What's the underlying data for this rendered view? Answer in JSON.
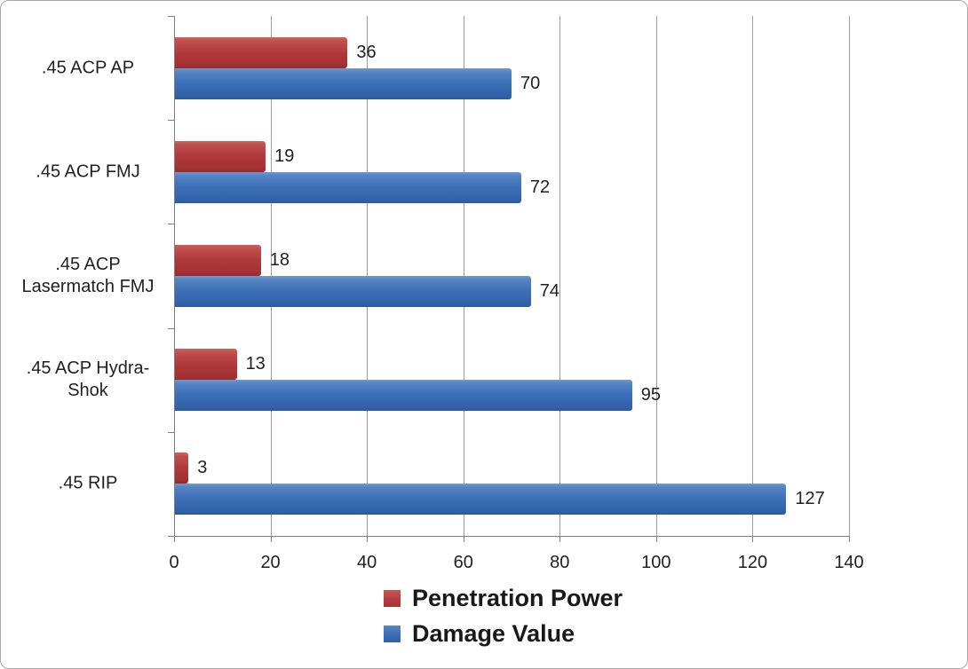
{
  "chart_data": {
    "type": "bar",
    "orientation": "horizontal",
    "title": "",
    "categories": [
      ".45 ACP AP",
      ".45 ACP FMJ",
      ".45 ACP Lasermatch FMJ",
      ".45 ACP Hydra-Shok",
      ".45 RIP"
    ],
    "series": [
      {
        "name": "Penetration Power",
        "color": "#b13a3b",
        "values": [
          36,
          19,
          18,
          13,
          3
        ]
      },
      {
        "name": "Damage Value",
        "color": "#3d6fb7",
        "values": [
          70,
          72,
          74,
          95,
          127
        ]
      }
    ],
    "xlabel": "",
    "ylabel": "",
    "xlim": [
      0,
      140
    ],
    "x_ticks": [
      0,
      20,
      40,
      60,
      80,
      100,
      120,
      140
    ],
    "grid": true,
    "value_labels": true,
    "legend_position": "bottom-center",
    "colors": {
      "gridline": "#9d9d9d",
      "axis": "#7f7f7f",
      "text": "#1f1f1f",
      "background": "#ffffff",
      "border": "#a6a6a6"
    }
  }
}
